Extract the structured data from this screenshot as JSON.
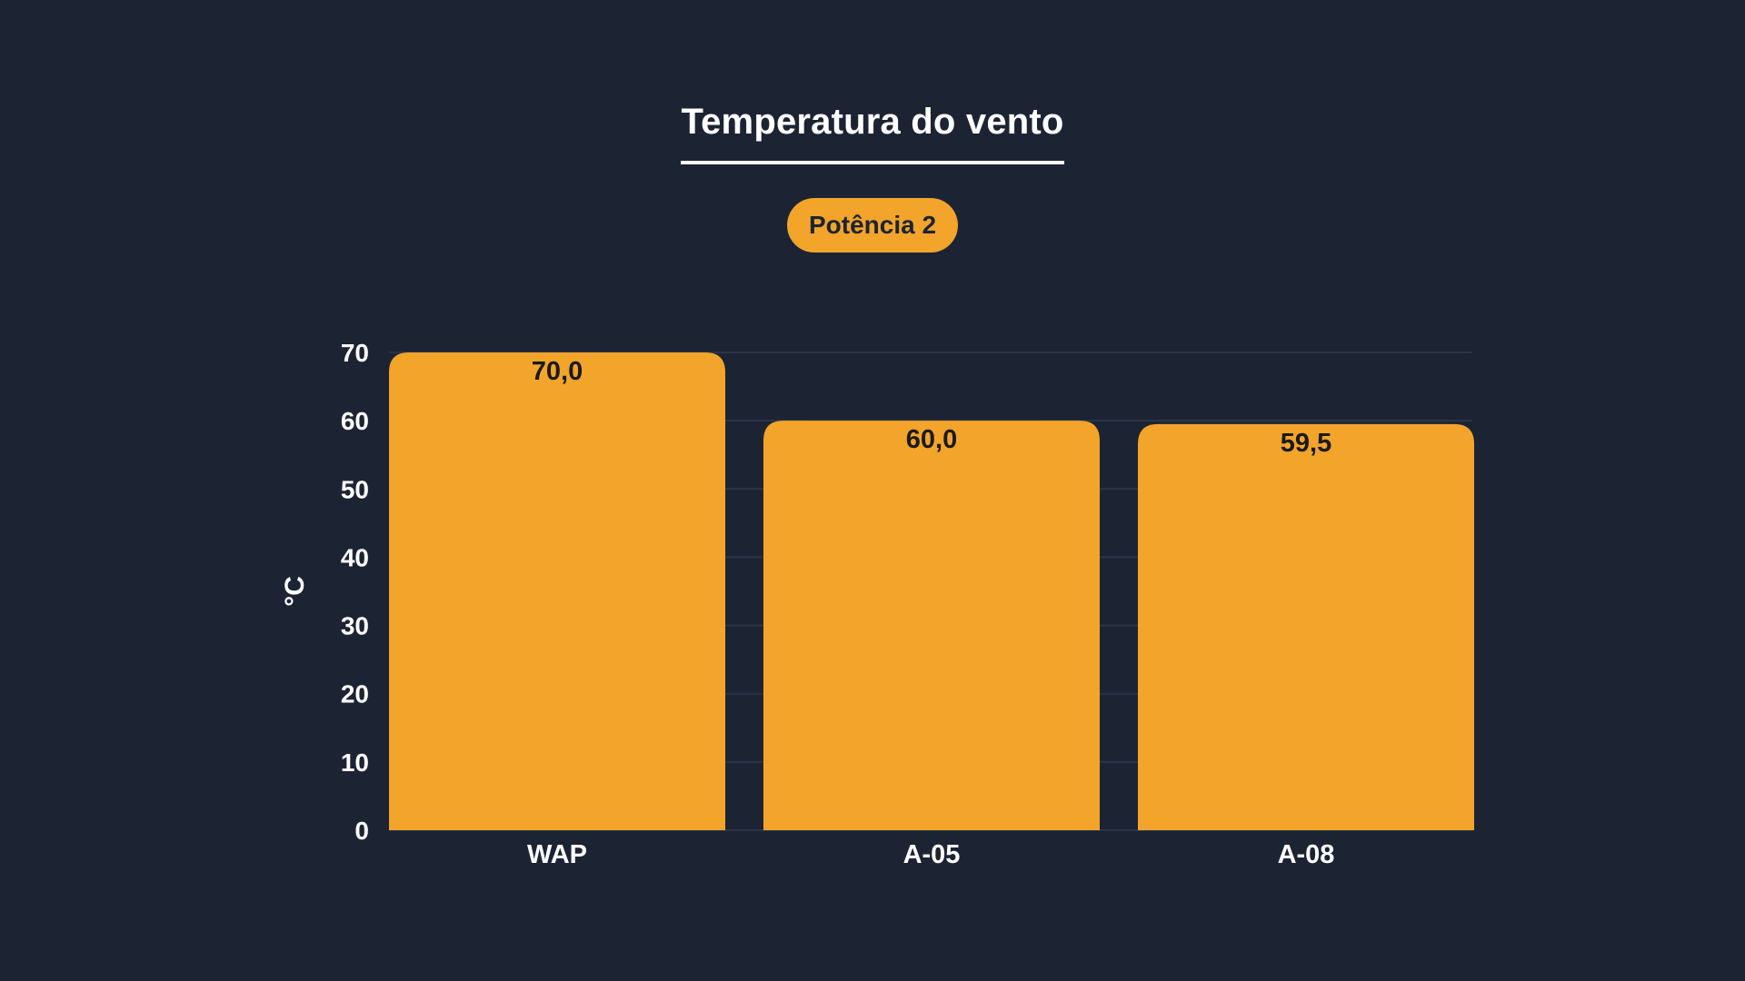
{
  "colors": {
    "background": "#1c2434",
    "bar": "#f2a42b",
    "grid": "#2b3446",
    "text": "#ffffff",
    "value_text": "#1a1a1a"
  },
  "badge": {
    "label": "Potência 2"
  },
  "chart_data": {
    "type": "bar",
    "title": "Temperatura do vento",
    "xlabel": "",
    "ylabel": "°C",
    "categories": [
      "WAP",
      "A-05",
      "A-08"
    ],
    "values": [
      70.0,
      60.0,
      59.5
    ],
    "value_labels": [
      "70,0",
      "60,0",
      "59,5"
    ],
    "ylim": [
      0,
      70
    ],
    "yticks": [
      0,
      10,
      20,
      30,
      40,
      50,
      60,
      70
    ],
    "grid": true,
    "legend": "none"
  }
}
